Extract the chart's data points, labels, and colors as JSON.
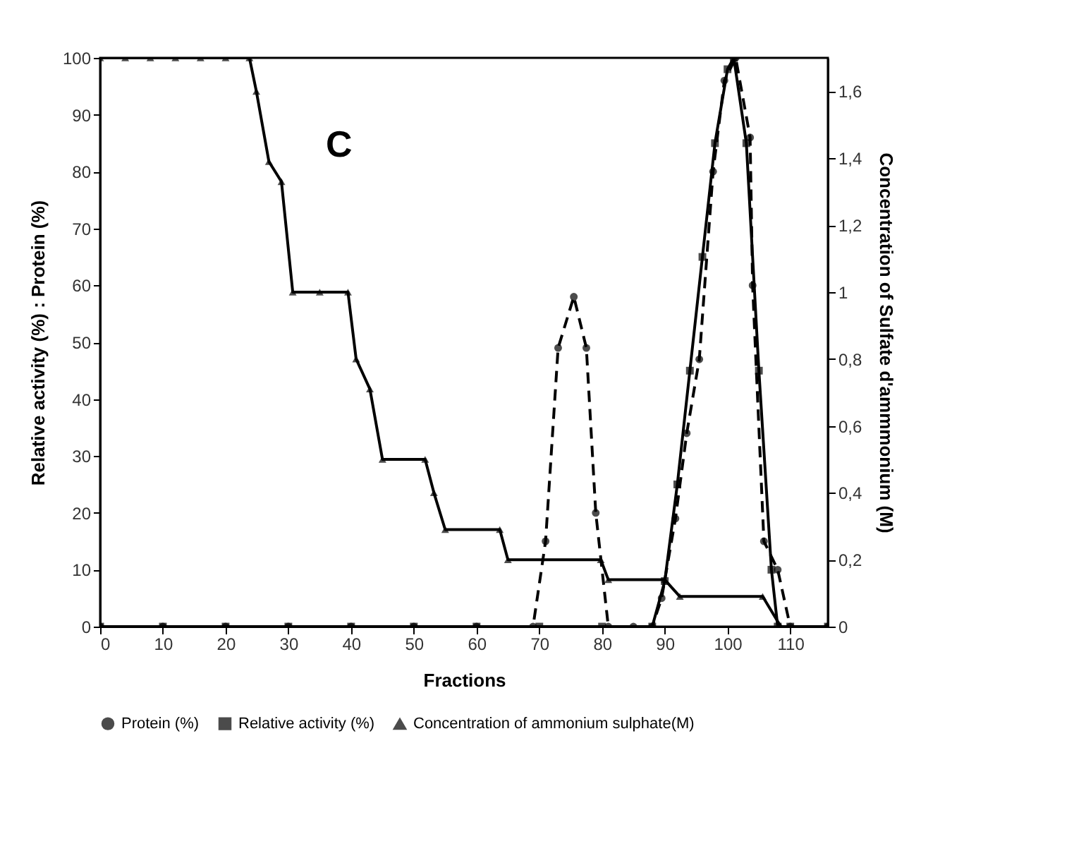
{
  "chart_data": {
    "type": "line",
    "xlabel": "Fractions",
    "ylabel": "Relative activity (%) : Protein (%)",
    "y2label": "Concentration of  Sulfate d'ammmonium (M)",
    "xlim": [
      0,
      116
    ],
    "xticks": [
      0,
      10,
      20,
      30,
      40,
      50,
      60,
      70,
      80,
      90,
      100,
      110
    ],
    "ylim": [
      0,
      100
    ],
    "yticks": [
      0,
      10,
      20,
      30,
      40,
      50,
      60,
      70,
      80,
      90,
      100
    ],
    "y2lim": [
      0,
      1.7
    ],
    "y2ticks": [
      0,
      {
        "value": 0.2,
        "label": "0,2"
      },
      {
        "value": 0.4,
        "label": "0,4"
      },
      {
        "value": 0.6,
        "label": "0,6"
      },
      {
        "value": 0.8,
        "label": "0,8"
      },
      1,
      {
        "value": 1.2,
        "label": "1,2"
      },
      {
        "value": 1.4,
        "label": "1,4"
      },
      {
        "value": 1.6,
        "label": "1,6"
      }
    ],
    "grid": false,
    "legend": "bottom",
    "annotations": [
      "C"
    ],
    "series": [
      {
        "name": "Protein (%)",
        "color": "#000000",
        "marker": "circle",
        "line_style": "dashed",
        "x": [
          0,
          10,
          20,
          30,
          40,
          50,
          60,
          69,
          71,
          73,
          75.5,
          77.5,
          79,
          81,
          85,
          88,
          89.5,
          91.7,
          93.5,
          95.5,
          97.7,
          99.5,
          101.3,
          103.6,
          104,
          105.8,
          108,
          110,
          116
        ],
        "values": [
          0,
          0,
          0,
          0,
          0,
          0,
          0,
          0,
          15,
          49,
          58,
          49,
          20,
          0,
          0,
          0,
          5,
          19,
          34,
          47,
          80,
          96,
          100,
          86,
          60,
          15,
          10,
          0,
          0
        ]
      },
      {
        "name": "Relative activity (%)",
        "color": "#000000",
        "marker": "square",
        "line_style": "solid",
        "x": [
          0,
          10,
          20,
          30,
          40,
          50,
          60,
          70,
          80,
          88,
          90,
          92,
          94,
          96,
          98,
          100,
          101,
          103,
          105,
          107,
          108,
          110,
          116
        ],
        "values": [
          0,
          0,
          0,
          0,
          0,
          0,
          0,
          0,
          0,
          0,
          8,
          25,
          45,
          65,
          85,
          98,
          100,
          85,
          45,
          10,
          0,
          0,
          0
        ]
      },
      {
        "name": "Concentration of ammonium sulphate(M)",
        "color": "#000000",
        "marker": "triangle",
        "line_style": "solid",
        "axis": "y2",
        "x": [
          0,
          4,
          8,
          12,
          16,
          20,
          23.8,
          24.9,
          26.9,
          28.9,
          30.7,
          35,
          39.5,
          40.8,
          43,
          45,
          51.8,
          53.2,
          55,
          63.7,
          65,
          79.8,
          81,
          90,
          92.4,
          105.6,
          108.5,
          116
        ],
        "values": [
          1.7,
          1.7,
          1.7,
          1.7,
          1.7,
          1.7,
          1.7,
          1.6,
          1.39,
          1.33,
          1.0,
          1.0,
          1.0,
          0.8,
          0.71,
          0.5,
          0.5,
          0.4,
          0.29,
          0.29,
          0.2,
          0.2,
          0.14,
          0.14,
          0.09,
          0.09,
          0,
          0
        ]
      }
    ]
  }
}
